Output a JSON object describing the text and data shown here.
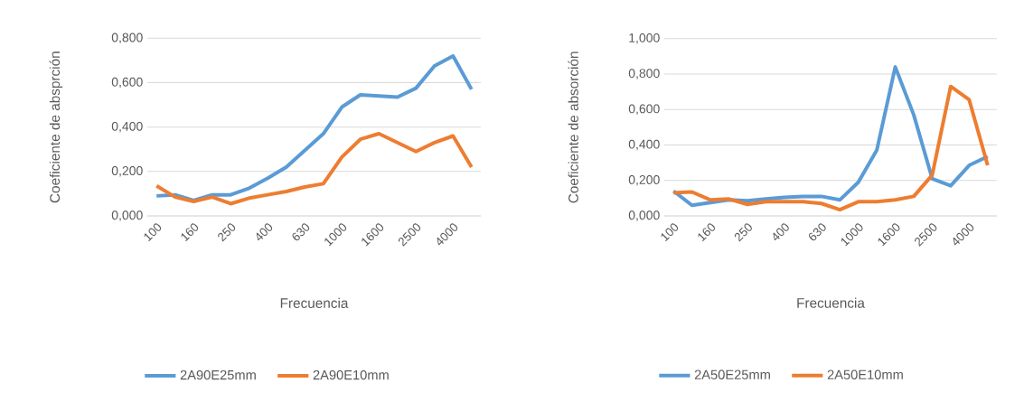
{
  "chart_data": [
    {
      "type": "line",
      "xlabel": "Frecuencia",
      "ylabel": "Coeficiente de absprción",
      "categories": [
        "100",
        null,
        "160",
        null,
        "250",
        null,
        "400",
        null,
        "630",
        null,
        "1000",
        null,
        "1600",
        null,
        "2500",
        null,
        "4000",
        null
      ],
      "series": [
        {
          "name": "2A90E25mm",
          "color": "#5b9bd5",
          "values": [
            0.09,
            0.095,
            0.07,
            0.095,
            0.095,
            0.125,
            0.17,
            0.22,
            0.295,
            0.37,
            0.49,
            0.545,
            0.54,
            0.535,
            0.575,
            0.675,
            0.72,
            0.57
          ]
        },
        {
          "name": "2A90E10mm",
          "color": "#ed7d31",
          "values": [
            0.135,
            0.085,
            0.065,
            0.085,
            0.055,
            0.08,
            0.095,
            0.11,
            0.13,
            0.145,
            0.265,
            0.345,
            0.37,
            0.33,
            0.29,
            0.33,
            0.36,
            0.22
          ]
        }
      ],
      "ylim": [
        0,
        0.8
      ],
      "yticks": [
        {
          "value": 0,
          "label": "0,000"
        },
        {
          "value": 0.2,
          "label": "0,200"
        },
        {
          "value": 0.4,
          "label": "0,400"
        },
        {
          "value": 0.6,
          "label": "0,600"
        },
        {
          "value": 0.8,
          "label": "0,800"
        }
      ],
      "grid": "y",
      "legend": "bottom",
      "marker": "none",
      "line_style": "solid"
    },
    {
      "type": "line",
      "xlabel": "Frecuencia",
      "ylabel": "Coeficiente de absorción",
      "categories": [
        "100",
        null,
        "160",
        null,
        "250",
        null,
        "400",
        null,
        "630",
        null,
        "1000",
        null,
        "1600",
        null,
        "2500",
        null,
        "4000",
        null
      ],
      "series": [
        {
          "name": "2A50E25mm",
          "color": "#5b9bd5",
          "values": [
            0.14,
            0.06,
            0.075,
            0.09,
            0.085,
            0.095,
            0.105,
            0.11,
            0.11,
            0.09,
            0.19,
            0.37,
            0.84,
            0.57,
            0.21,
            0.17,
            0.285,
            0.335
          ]
        },
        {
          "name": "2A50E10mm",
          "color": "#ed7d31",
          "values": [
            0.13,
            0.135,
            0.09,
            0.095,
            0.065,
            0.08,
            0.08,
            0.08,
            0.07,
            0.035,
            0.08,
            0.08,
            0.09,
            0.11,
            0.23,
            0.73,
            0.655,
            0.285
          ]
        }
      ],
      "ylim": [
        0,
        1
      ],
      "yticks": [
        {
          "value": 0,
          "label": "0,000"
        },
        {
          "value": 0.2,
          "label": "0,200"
        },
        {
          "value": 0.4,
          "label": "0,400"
        },
        {
          "value": 0.6,
          "label": "0,600"
        },
        {
          "value": 0.8,
          "label": "0,800"
        },
        {
          "value": 1,
          "label": "1,000"
        }
      ],
      "grid": "y",
      "legend": "bottom",
      "marker": "none",
      "line_style": "solid"
    }
  ]
}
